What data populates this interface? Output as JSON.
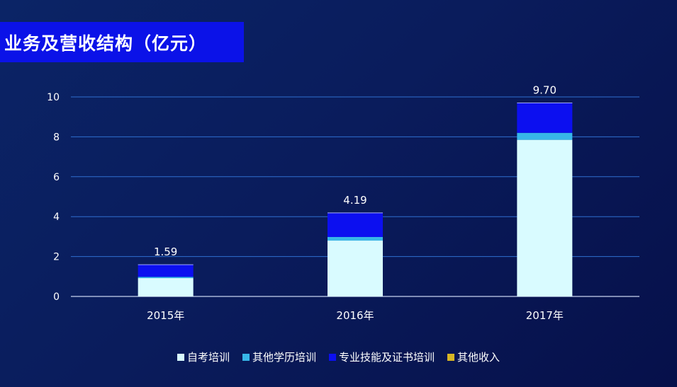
{
  "title": "业务及营收结构（亿元）",
  "chart_data": {
    "type": "bar",
    "stacked": true,
    "categories": [
      "2015年",
      "2016年",
      "2017年"
    ],
    "series": [
      {
        "name": "自考培训",
        "color": "#d9fbff",
        "values": [
          0.92,
          2.8,
          7.85
        ]
      },
      {
        "name": "其他学历培训",
        "color": "#37b6e8",
        "values": [
          0.06,
          0.18,
          0.35
        ]
      },
      {
        "name": "专业技能及证书培训",
        "color": "#0c0ff0",
        "values": [
          0.6,
          1.2,
          1.49
        ]
      },
      {
        "name": "其他收入",
        "color": "#d8b624",
        "values": [
          0.01,
          0.01,
          0.01
        ]
      }
    ],
    "totals": [
      "1.59",
      "4.19",
      "9.70"
    ],
    "yticks": [
      "0",
      "2",
      "4",
      "6",
      "8",
      "10"
    ],
    "ylim": [
      0,
      10
    ],
    "grid": true,
    "legend_position": "bottom"
  }
}
